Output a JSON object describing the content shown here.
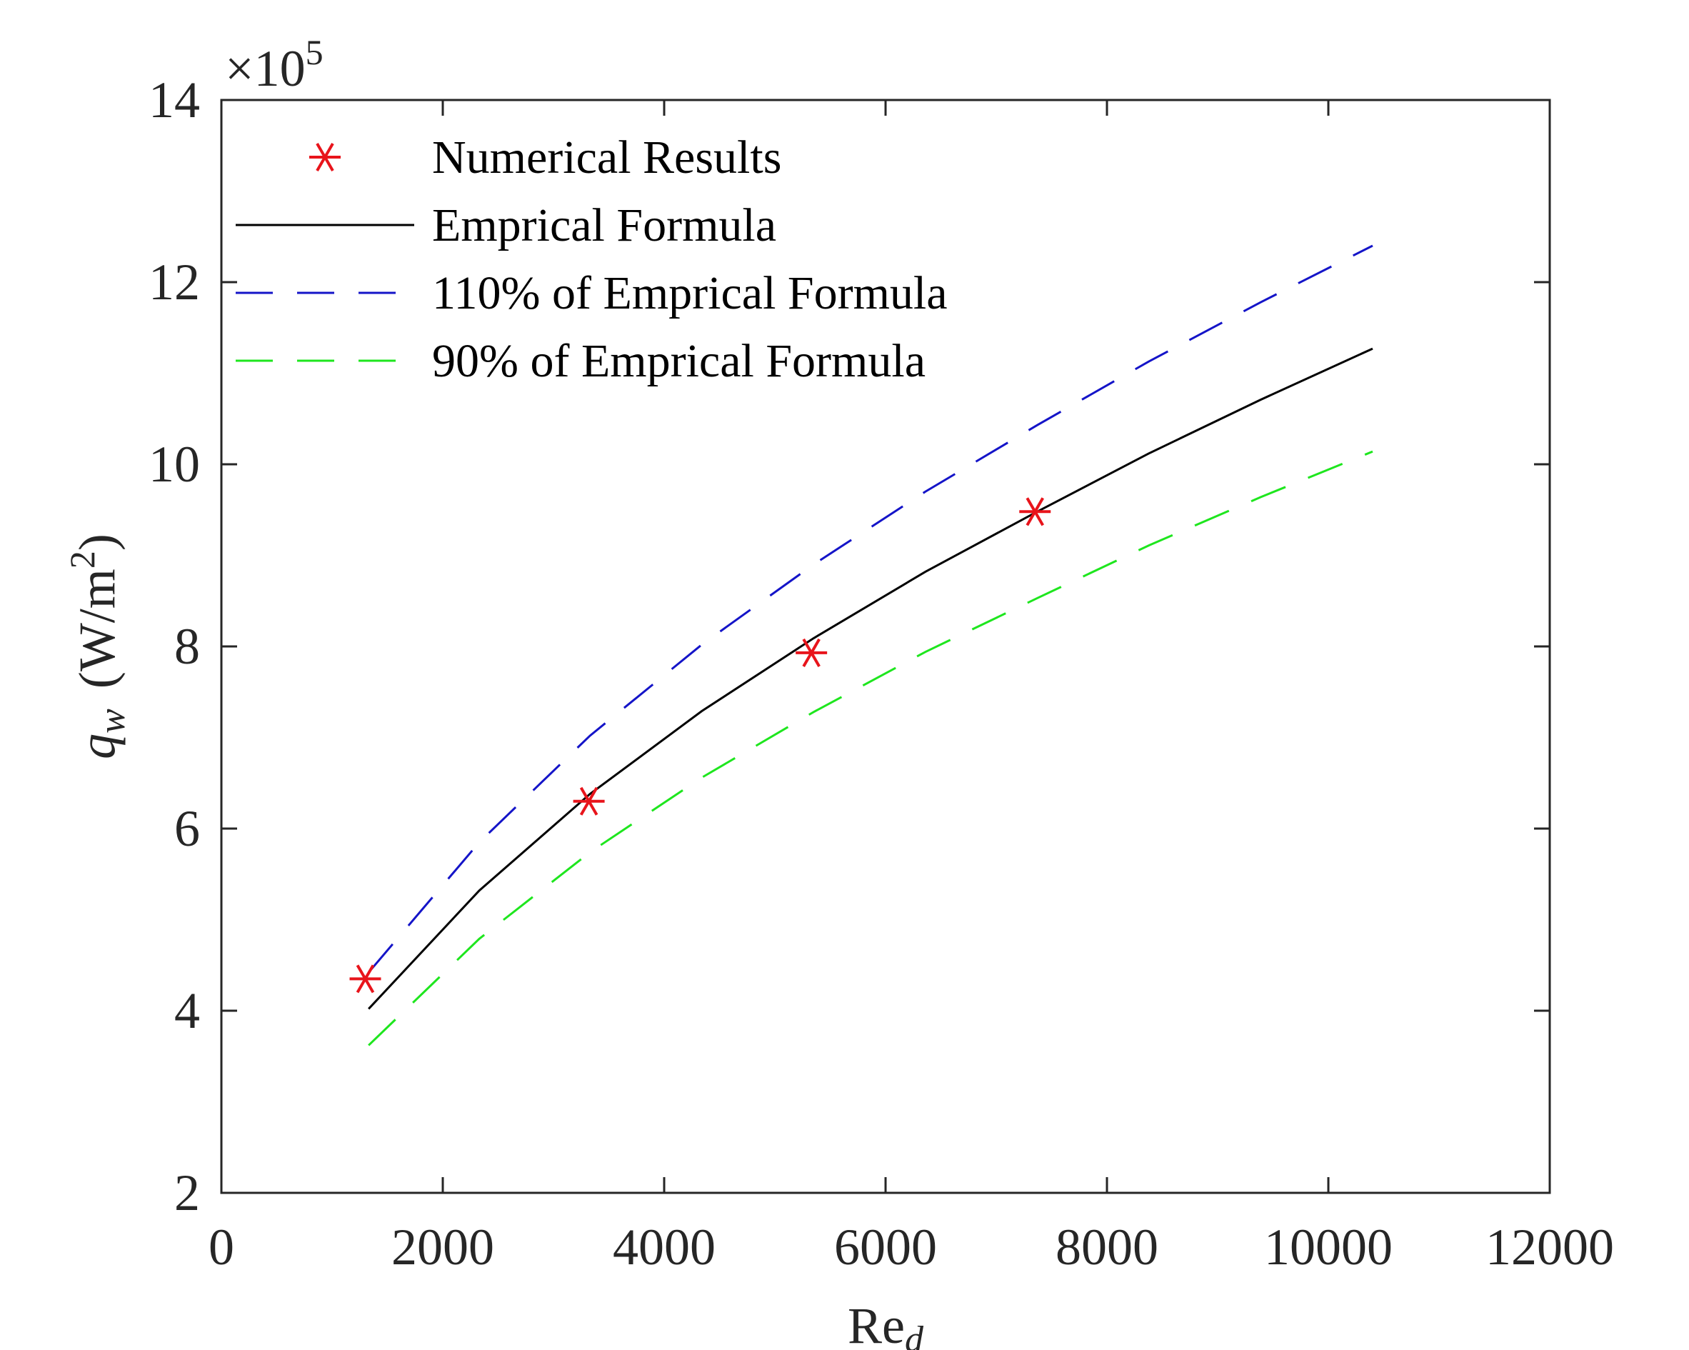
{
  "chart_data": {
    "type": "line",
    "xlabel": "Re",
    "xlabel_subscript": "d",
    "ylabel": "q",
    "ylabel_subscript": "w",
    "ylabel_unit": "(W/m",
    "ylabel_unit_sup": "2",
    "ylabel_unit_close": ")",
    "y_multiplier_prefix": "×10",
    "y_multiplier_exp": "5",
    "xlim": [
      0,
      12000
    ],
    "ylim": [
      2,
      14
    ],
    "xticks": [
      0,
      2000,
      4000,
      6000,
      8000,
      10000,
      12000
    ],
    "xtick_labels": [
      "0",
      "2000",
      "4000",
      "6000",
      "8000",
      "10000",
      "12000"
    ],
    "yticks": [
      2,
      4,
      6,
      8,
      10,
      12,
      14
    ],
    "ytick_labels": [
      "2",
      "4",
      "6",
      "8",
      "10",
      "12",
      "14"
    ],
    "grid": false,
    "legend_position": "top-left",
    "series": [
      {
        "name": "Numerical Results",
        "style": "marker-asterisk",
        "color": "#e8141b",
        "x": [
          1300,
          3320,
          5330,
          7350
        ],
        "y": [
          4.35,
          6.3,
          7.93,
          9.48
        ]
      },
      {
        "name": "Emprical Formula",
        "style": "solid",
        "color": "#000000",
        "x": [
          1330,
          2330,
          3330,
          4340,
          5350,
          6360,
          7370,
          8380,
          9390,
          10400
        ],
        "y": [
          4.02,
          5.32,
          6.38,
          7.29,
          8.09,
          8.82,
          9.48,
          10.12,
          10.71,
          11.27
        ]
      },
      {
        "name": "110% of Emprical Formula",
        "style": "dashed",
        "color": "#1414c8",
        "x": [
          1330,
          2330,
          3330,
          4340,
          5350,
          6360,
          7370,
          8380,
          9390,
          10400
        ],
        "y": [
          4.42,
          5.85,
          7.02,
          8.02,
          8.9,
          9.7,
          10.43,
          11.13,
          11.78,
          12.4
        ]
      },
      {
        "name": "90% of Emprical Formula",
        "style": "dashed",
        "color": "#1ee61e",
        "x": [
          1330,
          2330,
          3330,
          4340,
          5350,
          6360,
          7370,
          8380,
          9390,
          10400
        ],
        "y": [
          3.62,
          4.79,
          5.74,
          6.56,
          7.28,
          7.94,
          8.53,
          9.11,
          9.64,
          10.14
        ]
      }
    ]
  }
}
